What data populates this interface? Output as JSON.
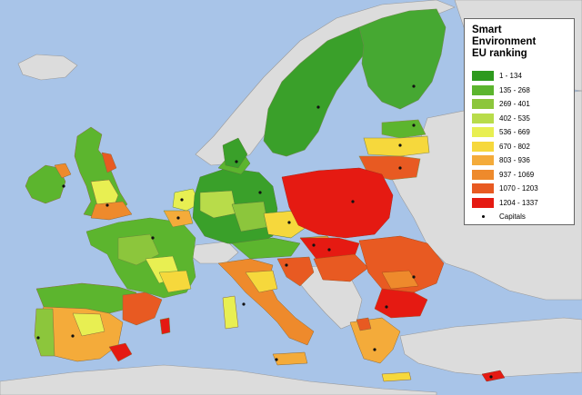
{
  "legend": {
    "title_line1": "Smart Environment",
    "title_line2": "EU ranking",
    "classes": [
      {
        "label": "1 - 134",
        "color": "#2e9a1e"
      },
      {
        "label": "135 - 268",
        "color": "#5cb52e"
      },
      {
        "label": "269 - 401",
        "color": "#8cc63c"
      },
      {
        "label": "402 - 535",
        "color": "#b8dc4a"
      },
      {
        "label": "536 - 669",
        "color": "#e8ef52"
      },
      {
        "label": "670 - 802",
        "color": "#f6d83c"
      },
      {
        "label": "803 - 936",
        "color": "#f4ab3a"
      },
      {
        "label": "937 - 1069",
        "color": "#ee8a2c"
      },
      {
        "label": "1070 - 1203",
        "color": "#e85a22"
      },
      {
        "label": "1204 - 1337",
        "color": "#e51a12"
      }
    ],
    "capitals_label": "Capitals"
  },
  "colors": {
    "sea": "#a8c4e8",
    "non_eu": "#dcdcdc",
    "border": "#8a8a8a"
  }
}
